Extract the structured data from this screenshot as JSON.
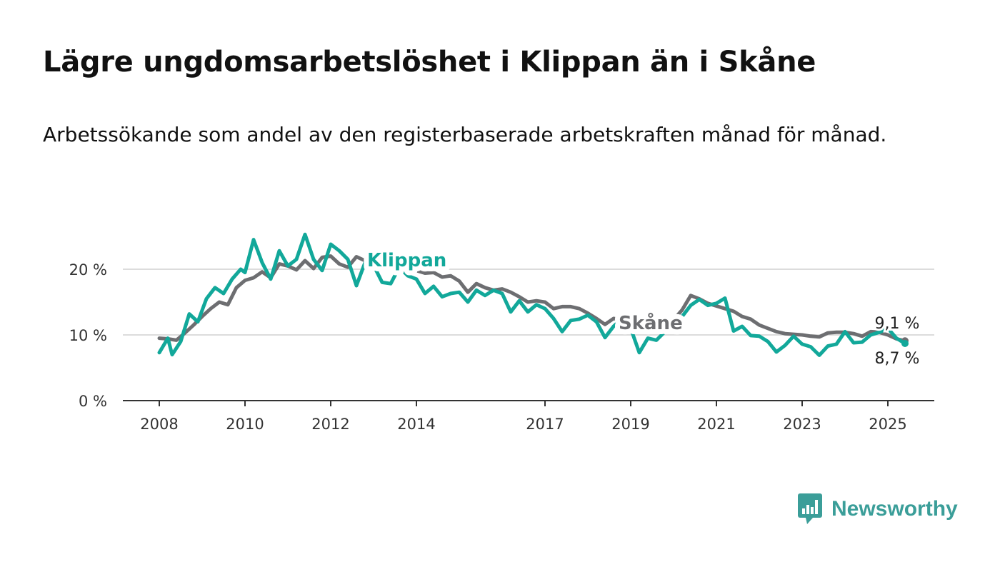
{
  "title": "Lägre ungdomsarbetslöshet i Klippan än i Skåne",
  "subtitle": "Arbetssökande som andel av den registerbaserade arbetskraften månad för månad.",
  "brand": {
    "name": "Newsworthy",
    "icon": "bar-chart-speech-bubble-icon",
    "color": "#3b9e99"
  },
  "colors": {
    "klippan": "#12a89a",
    "skane": "#6d6e71",
    "grid": "#dcdcdc",
    "axis": "#333333"
  },
  "chart_data": {
    "type": "line",
    "title": "Lägre ungdomsarbetslöshet i Klippan än i Skåne",
    "subtitle": "Arbetssökande som andel av den registerbaserade arbetskraften månad för månad.",
    "xlabel": "",
    "ylabel": "",
    "x_range": [
      2007.2,
      2026.1
    ],
    "ylim": [
      0,
      20
    ],
    "x_ticks": [
      2008,
      2010,
      2012,
      2014,
      2017,
      2019,
      2021,
      2023,
      2025
    ],
    "y_ticks": [
      0,
      10,
      20
    ],
    "y_tick_labels": [
      "0 %",
      "10 %",
      "20 %"
    ],
    "grid": true,
    "legend": "inline labels",
    "end_labels": {
      "skane": "9,1 %",
      "klippan": "8,7 %"
    },
    "series": [
      {
        "name": "Skåne",
        "color": "#6d6e71",
        "points": [
          [
            2008.0,
            9.5
          ],
          [
            2008.2,
            9.4
          ],
          [
            2008.4,
            9.2
          ],
          [
            2008.6,
            10.3
          ],
          [
            2008.8,
            11.5
          ],
          [
            2009.0,
            12.8
          ],
          [
            2009.2,
            14.0
          ],
          [
            2009.4,
            15.0
          ],
          [
            2009.6,
            14.6
          ],
          [
            2009.8,
            17.2
          ],
          [
            2010.0,
            18.3
          ],
          [
            2010.2,
            18.7
          ],
          [
            2010.4,
            19.6
          ],
          [
            2010.6,
            18.7
          ],
          [
            2010.8,
            20.8
          ],
          [
            2011.0,
            20.5
          ],
          [
            2011.2,
            19.9
          ],
          [
            2011.4,
            21.3
          ],
          [
            2011.6,
            20.1
          ],
          [
            2011.8,
            21.8
          ],
          [
            2012.0,
            22.0
          ],
          [
            2012.2,
            20.8
          ],
          [
            2012.4,
            20.3
          ],
          [
            2012.6,
            21.9
          ],
          [
            2012.8,
            21.3
          ],
          [
            2013.0,
            20.5
          ],
          [
            2013.2,
            21.1
          ],
          [
            2013.4,
            20.3
          ],
          [
            2013.6,
            19.7
          ],
          [
            2013.8,
            20.2
          ],
          [
            2014.0,
            19.8
          ],
          [
            2014.2,
            19.4
          ],
          [
            2014.4,
            19.5
          ],
          [
            2014.6,
            18.8
          ],
          [
            2014.8,
            19.0
          ],
          [
            2015.0,
            18.2
          ],
          [
            2015.2,
            16.5
          ],
          [
            2015.4,
            17.8
          ],
          [
            2015.6,
            17.2
          ],
          [
            2015.8,
            16.8
          ],
          [
            2016.0,
            17.0
          ],
          [
            2016.2,
            16.5
          ],
          [
            2016.4,
            15.8
          ],
          [
            2016.6,
            15.0
          ],
          [
            2016.8,
            15.2
          ],
          [
            2017.0,
            15.0
          ],
          [
            2017.2,
            14.0
          ],
          [
            2017.4,
            14.3
          ],
          [
            2017.6,
            14.3
          ],
          [
            2017.8,
            14.0
          ],
          [
            2018.0,
            13.3
          ],
          [
            2018.2,
            12.5
          ],
          [
            2018.4,
            11.6
          ],
          [
            2018.6,
            12.5
          ],
          [
            2018.8,
            12.3
          ],
          [
            2019.0,
            11.8
          ],
          [
            2019.2,
            11.0
          ],
          [
            2019.4,
            10.8
          ],
          [
            2019.6,
            11.2
          ],
          [
            2019.8,
            11.5
          ],
          [
            2020.0,
            12.3
          ],
          [
            2020.2,
            13.8
          ],
          [
            2020.4,
            16.0
          ],
          [
            2020.6,
            15.5
          ],
          [
            2020.8,
            14.8
          ],
          [
            2021.0,
            14.4
          ],
          [
            2021.2,
            14.0
          ],
          [
            2021.4,
            13.6
          ],
          [
            2021.6,
            12.8
          ],
          [
            2021.8,
            12.4
          ],
          [
            2022.0,
            11.5
          ],
          [
            2022.2,
            11.0
          ],
          [
            2022.4,
            10.5
          ],
          [
            2022.6,
            10.2
          ],
          [
            2022.8,
            10.1
          ],
          [
            2023.0,
            10.0
          ],
          [
            2023.2,
            9.8
          ],
          [
            2023.4,
            9.7
          ],
          [
            2023.6,
            10.3
          ],
          [
            2023.8,
            10.4
          ],
          [
            2024.0,
            10.4
          ],
          [
            2024.2,
            10.2
          ],
          [
            2024.4,
            9.8
          ],
          [
            2024.6,
            10.5
          ],
          [
            2024.8,
            10.4
          ],
          [
            2025.0,
            10.0
          ],
          [
            2025.2,
            9.4
          ],
          [
            2025.4,
            9.1
          ]
        ]
      },
      {
        "name": "Klippan",
        "color": "#12a89a",
        "points": [
          [
            2008.0,
            7.3
          ],
          [
            2008.2,
            9.5
          ],
          [
            2008.3,
            7.0
          ],
          [
            2008.5,
            9.0
          ],
          [
            2008.7,
            13.2
          ],
          [
            2008.9,
            12.0
          ],
          [
            2009.1,
            15.5
          ],
          [
            2009.3,
            17.2
          ],
          [
            2009.5,
            16.3
          ],
          [
            2009.7,
            18.5
          ],
          [
            2009.9,
            20.0
          ],
          [
            2010.0,
            19.5
          ],
          [
            2010.2,
            24.5
          ],
          [
            2010.4,
            21.0
          ],
          [
            2010.6,
            18.5
          ],
          [
            2010.8,
            22.8
          ],
          [
            2011.0,
            20.5
          ],
          [
            2011.2,
            21.5
          ],
          [
            2011.4,
            25.3
          ],
          [
            2011.6,
            21.5
          ],
          [
            2011.8,
            19.8
          ],
          [
            2012.0,
            23.8
          ],
          [
            2012.2,
            22.8
          ],
          [
            2012.4,
            21.5
          ],
          [
            2012.6,
            17.5
          ],
          [
            2012.8,
            21.0
          ],
          [
            2013.0,
            20.6
          ],
          [
            2013.2,
            18.0
          ],
          [
            2013.4,
            17.8
          ],
          [
            2013.6,
            20.3
          ],
          [
            2013.8,
            19.0
          ],
          [
            2014.0,
            18.5
          ],
          [
            2014.2,
            16.3
          ],
          [
            2014.4,
            17.4
          ],
          [
            2014.6,
            15.8
          ],
          [
            2014.8,
            16.3
          ],
          [
            2015.0,
            16.5
          ],
          [
            2015.2,
            15.0
          ],
          [
            2015.4,
            16.8
          ],
          [
            2015.6,
            16.0
          ],
          [
            2015.8,
            16.8
          ],
          [
            2016.0,
            16.3
          ],
          [
            2016.2,
            13.5
          ],
          [
            2016.4,
            15.2
          ],
          [
            2016.6,
            13.5
          ],
          [
            2016.8,
            14.6
          ],
          [
            2017.0,
            14.0
          ],
          [
            2017.2,
            12.5
          ],
          [
            2017.4,
            10.5
          ],
          [
            2017.6,
            12.2
          ],
          [
            2017.8,
            12.4
          ],
          [
            2018.0,
            13.0
          ],
          [
            2018.2,
            12.0
          ],
          [
            2018.4,
            9.6
          ],
          [
            2018.6,
            11.3
          ],
          [
            2018.8,
            12.5
          ],
          [
            2019.0,
            11.0
          ],
          [
            2019.2,
            7.3
          ],
          [
            2019.4,
            9.5
          ],
          [
            2019.6,
            9.2
          ],
          [
            2019.8,
            10.5
          ],
          [
            2020.0,
            11.0
          ],
          [
            2020.2,
            12.8
          ],
          [
            2020.4,
            14.5
          ],
          [
            2020.6,
            15.4
          ],
          [
            2020.8,
            14.5
          ],
          [
            2021.0,
            14.8
          ],
          [
            2021.2,
            15.6
          ],
          [
            2021.4,
            10.6
          ],
          [
            2021.6,
            11.3
          ],
          [
            2021.8,
            9.9
          ],
          [
            2022.0,
            9.8
          ],
          [
            2022.2,
            9.0
          ],
          [
            2022.4,
            7.4
          ],
          [
            2022.6,
            8.4
          ],
          [
            2022.8,
            9.8
          ],
          [
            2023.0,
            8.6
          ],
          [
            2023.2,
            8.2
          ],
          [
            2023.4,
            6.9
          ],
          [
            2023.6,
            8.3
          ],
          [
            2023.8,
            8.6
          ],
          [
            2024.0,
            10.5
          ],
          [
            2024.2,
            8.8
          ],
          [
            2024.4,
            8.9
          ],
          [
            2024.6,
            10.0
          ],
          [
            2024.8,
            10.4
          ],
          [
            2025.0,
            11.0
          ],
          [
            2025.2,
            9.5
          ],
          [
            2025.4,
            8.7
          ]
        ]
      }
    ]
  }
}
